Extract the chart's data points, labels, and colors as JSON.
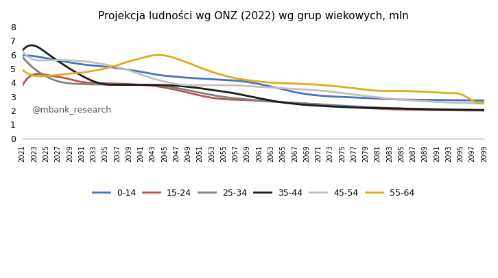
{
  "title": "Projekcja ludności wg ONZ (2022) wg grup wiekowych, mln",
  "annotation": "@mbank_research",
  "years": [
    2021,
    2023,
    2025,
    2027,
    2029,
    2031,
    2033,
    2035,
    2037,
    2039,
    2041,
    2043,
    2045,
    2047,
    2049,
    2051,
    2053,
    2055,
    2057,
    2059,
    2061,
    2063,
    2065,
    2067,
    2069,
    2071,
    2073,
    2075,
    2077,
    2079,
    2081,
    2083,
    2085,
    2087,
    2089,
    2091,
    2093,
    2095,
    2097,
    2099
  ],
  "series": {
    "0-14": {
      "color": "#4472C4",
      "values": [
        5.95,
        5.9,
        5.75,
        5.6,
        5.45,
        5.32,
        5.22,
        5.15,
        5.05,
        4.92,
        4.78,
        4.62,
        4.5,
        4.42,
        4.35,
        4.3,
        4.25,
        4.2,
        4.15,
        4.05,
        3.9,
        3.72,
        3.52,
        3.32,
        3.18,
        3.08,
        3.02,
        2.98,
        2.94,
        2.9,
        2.86,
        2.82,
        2.79,
        2.78,
        2.77,
        2.76,
        2.75,
        2.74,
        2.73,
        2.72
      ]
    },
    "15-24": {
      "color": "#C0504D",
      "values": [
        3.8,
        4.6,
        4.55,
        4.42,
        4.25,
        4.05,
        3.98,
        3.95,
        3.93,
        3.9,
        3.85,
        3.78,
        3.65,
        3.48,
        3.28,
        3.08,
        2.92,
        2.82,
        2.78,
        2.75,
        2.7,
        2.65,
        2.6,
        2.55,
        2.5,
        2.45,
        2.38,
        2.3,
        2.24,
        2.18,
        2.14,
        2.1,
        2.08,
        2.06,
        2.04,
        2.03,
        2.02,
        2.01,
        2.01,
        2.0
      ]
    },
    "25-34": {
      "color": "#808080",
      "values": [
        5.85,
        5.0,
        4.45,
        4.1,
        3.95,
        3.9,
        3.88,
        3.87,
        3.87,
        3.86,
        3.85,
        3.82,
        3.75,
        3.62,
        3.45,
        3.28,
        3.12,
        2.98,
        2.88,
        2.8,
        2.72,
        2.65,
        2.6,
        2.55,
        2.5,
        2.45,
        2.4,
        2.35,
        2.3,
        2.25,
        2.22,
        2.18,
        2.15,
        2.12,
        2.1,
        2.08,
        2.06,
        2.05,
        2.04,
        2.02
      ]
    },
    "35-44": {
      "color": "#1A1A1A",
      "values": [
        6.3,
        6.65,
        6.15,
        5.55,
        5.0,
        4.5,
        4.1,
        3.88,
        3.85,
        3.84,
        3.84,
        3.84,
        3.82,
        3.78,
        3.7,
        3.6,
        3.48,
        3.36,
        3.22,
        3.05,
        2.88,
        2.72,
        2.58,
        2.48,
        2.4,
        2.35,
        2.3,
        2.26,
        2.22,
        2.2,
        2.18,
        2.16,
        2.14,
        2.12,
        2.1,
        2.08,
        2.07,
        2.06,
        2.05,
        2.04
      ]
    },
    "45-54": {
      "color": "#C0C0C0",
      "values": [
        6.25,
        5.65,
        5.6,
        5.62,
        5.6,
        5.55,
        5.45,
        5.3,
        5.12,
        4.88,
        4.58,
        4.3,
        4.08,
        3.9,
        3.82,
        3.82,
        3.82,
        3.82,
        3.8,
        3.76,
        3.7,
        3.65,
        3.6,
        3.55,
        3.5,
        3.44,
        3.36,
        3.26,
        3.15,
        3.04,
        2.95,
        2.86,
        2.78,
        2.72,
        2.67,
        2.62,
        2.58,
        2.55,
        2.52,
        2.5
      ]
    },
    "55-64": {
      "color": "#E6A817",
      "values": [
        4.92,
        4.5,
        4.48,
        4.55,
        4.65,
        4.72,
        4.85,
        5.02,
        5.25,
        5.52,
        5.75,
        5.95,
        5.95,
        5.72,
        5.42,
        5.08,
        4.78,
        4.52,
        4.32,
        4.18,
        4.08,
        4.0,
        3.96,
        3.93,
        3.9,
        3.85,
        3.78,
        3.7,
        3.6,
        3.5,
        3.42,
        3.4,
        3.4,
        3.38,
        3.35,
        3.3,
        3.25,
        3.18,
        2.72,
        2.62
      ]
    }
  },
  "ylim": [
    0,
    8
  ],
  "yticks": [
    0,
    1,
    2,
    3,
    4,
    5,
    6,
    7,
    8
  ],
  "xtick_years": [
    2021,
    2023,
    2025,
    2027,
    2029,
    2031,
    2033,
    2035,
    2037,
    2039,
    2041,
    2043,
    2045,
    2047,
    2049,
    2051,
    2053,
    2055,
    2057,
    2059,
    2061,
    2063,
    2065,
    2067,
    2069,
    2071,
    2073,
    2075,
    2077,
    2079,
    2081,
    2083,
    2085,
    2087,
    2089,
    2091,
    2093,
    2095,
    2097,
    2099
  ],
  "background_color": "#FFFFFF",
  "linewidth": 2.0
}
